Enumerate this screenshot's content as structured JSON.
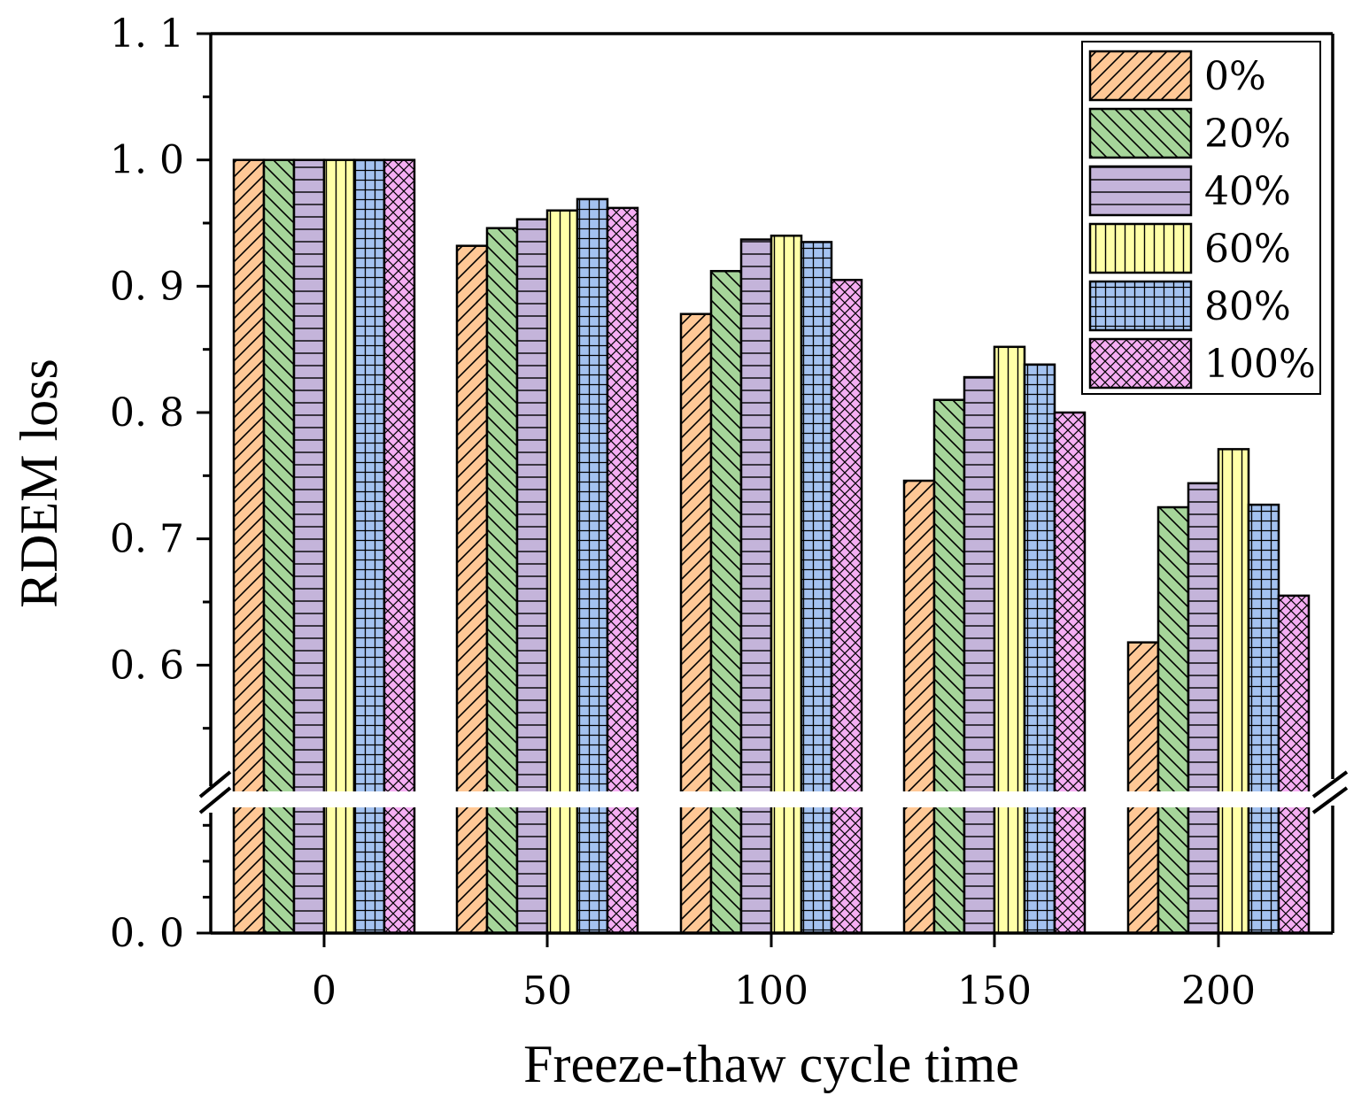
{
  "chart_data": {
    "type": "bar",
    "title": "",
    "xlabel": "Freeze-thaw cycle time",
    "ylabel": "RDEM loss",
    "categories": [
      "0",
      "50",
      "100",
      "150",
      "200"
    ],
    "series": [
      {
        "name": "0%",
        "color": "#FFC896",
        "pattern": "diag-up",
        "values": [
          1.0,
          0.932,
          0.878,
          0.746,
          0.618
        ]
      },
      {
        "name": "20%",
        "color": "#A6D59A",
        "pattern": "diag-down",
        "values": [
          1.0,
          0.946,
          0.912,
          0.81,
          0.725
        ]
      },
      {
        "name": "40%",
        "color": "#C4B4DA",
        "pattern": "horizontal",
        "values": [
          1.0,
          0.953,
          0.937,
          0.828,
          0.744
        ]
      },
      {
        "name": "60%",
        "color": "#FFFFA8",
        "pattern": "vertical",
        "values": [
          1.0,
          0.96,
          0.94,
          0.852,
          0.771
        ]
      },
      {
        "name": "80%",
        "color": "#A4C2F0",
        "pattern": "grid",
        "values": [
          1.0,
          0.969,
          0.935,
          0.838,
          0.727
        ]
      },
      {
        "name": "100%",
        "color": "#F5AEF3",
        "pattern": "crosshatch",
        "values": [
          1.0,
          0.962,
          0.905,
          0.8,
          0.655
        ]
      }
    ],
    "y_break": {
      "lower_range": [
        0.0,
        0.35
      ],
      "upper_range": [
        0.5,
        1.1
      ]
    },
    "yticks": [
      {
        "value": 0.0,
        "label": "0. 0"
      },
      {
        "value": 0.6,
        "label": "0. 6"
      },
      {
        "value": 0.7,
        "label": "0. 7"
      },
      {
        "value": 0.8,
        "label": "0. 8"
      },
      {
        "value": 0.9,
        "label": "0. 9"
      },
      {
        "value": 1.0,
        "label": "1. 0"
      },
      {
        "value": 1.1,
        "label": "1. 1"
      }
    ],
    "legend_position": "top-right"
  }
}
